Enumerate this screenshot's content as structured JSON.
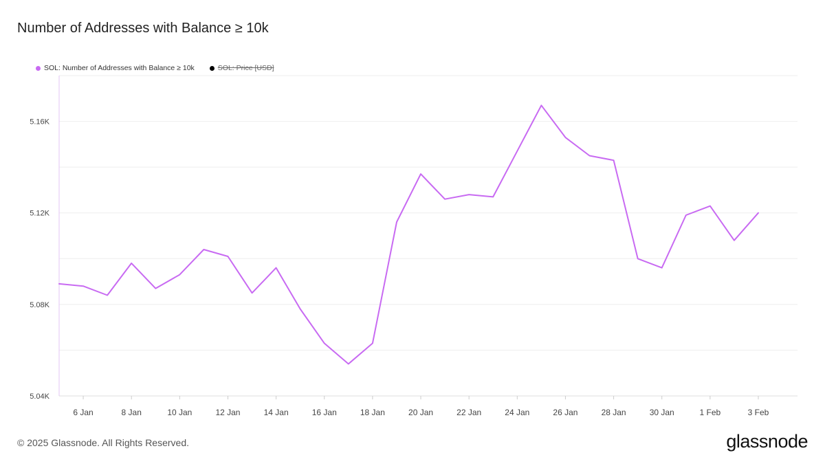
{
  "title": "Number of Addresses with Balance ≥ 10k",
  "legend": [
    {
      "label": "SOL: Number of Addresses with Balance ≥ 10k",
      "color": "#c86af2",
      "hidden": false
    },
    {
      "label": "SOL: Price [USD]",
      "color": "#000000",
      "hidden": true
    }
  ],
  "footer": "© 2025 Glassnode. All Rights Reserved.",
  "brand": "glassnode",
  "chart_data": {
    "type": "line",
    "title": "Number of Addresses with Balance ≥ 10k",
    "x": [
      "5 Jan",
      "6 Jan",
      "7 Jan",
      "8 Jan",
      "9 Jan",
      "10 Jan",
      "11 Jan",
      "12 Jan",
      "13 Jan",
      "14 Jan",
      "15 Jan",
      "16 Jan",
      "17 Jan",
      "18 Jan",
      "19 Jan",
      "20 Jan",
      "21 Jan",
      "22 Jan",
      "23 Jan",
      "24 Jan",
      "25 Jan",
      "26 Jan",
      "27 Jan",
      "28 Jan",
      "29 Jan",
      "30 Jan",
      "31 Jan",
      "1 Feb",
      "2 Feb",
      "3 Feb"
    ],
    "series": [
      {
        "name": "SOL: Number of Addresses with Balance ≥ 10k",
        "color": "#c86af2",
        "values": [
          5089,
          5088,
          5084,
          5098,
          5087,
          5093,
          5104,
          5101,
          5085,
          5096,
          5078,
          5063,
          5054,
          5063,
          5116,
          5137,
          5126,
          5128,
          5127,
          5147,
          5167,
          5153,
          5145,
          5143,
          5100,
          5096,
          5119,
          5123,
          5108,
          5120
        ]
      }
    ],
    "x_tick_labels": [
      "6 Jan",
      "8 Jan",
      "10 Jan",
      "12 Jan",
      "14 Jan",
      "16 Jan",
      "18 Jan",
      "20 Jan",
      "22 Jan",
      "24 Jan",
      "26 Jan",
      "28 Jan",
      "30 Jan",
      "1 Feb",
      "3 Feb"
    ],
    "y_tick_values": [
      5040,
      5080,
      5120,
      5160
    ],
    "y_tick_labels": [
      "5.04K",
      "5.08K",
      "5.12K",
      "5.16K"
    ],
    "ylim": [
      5040,
      5180
    ],
    "grid": true,
    "legend_position": "top-left"
  }
}
